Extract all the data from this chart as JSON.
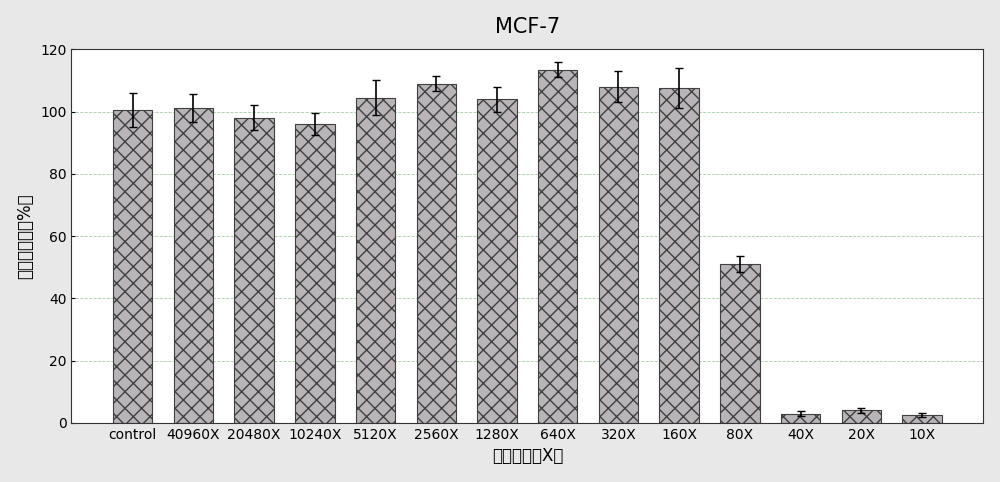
{
  "title": "MCF-7",
  "xlabel": "稀释倍数（X）",
  "ylabel": "相对存活率（%）",
  "categories": [
    "control",
    "40960X",
    "20480X",
    "10240X",
    "5120X",
    "2560X",
    "1280X",
    "640X",
    "320X",
    "160X",
    "80X",
    "40X",
    "20X",
    "10X"
  ],
  "values": [
    100.5,
    101.0,
    98.0,
    96.0,
    104.5,
    109.0,
    104.0,
    113.5,
    108.0,
    107.5,
    51.0,
    3.0,
    4.0,
    2.5
  ],
  "errors": [
    5.5,
    4.5,
    4.0,
    3.5,
    5.5,
    2.5,
    4.0,
    2.5,
    5.0,
    6.5,
    2.5,
    0.8,
    0.8,
    0.7
  ],
  "bar_face_color": "#b8b4b8",
  "bar_edge_color": "#404040",
  "hatch": "xx",
  "hatch_color": "#90a090",
  "ylim": [
    0,
    120
  ],
  "yticks": [
    0,
    20,
    40,
    60,
    80,
    100,
    120
  ],
  "grid_color": "#90c090",
  "grid_linestyle": "--",
  "title_fontsize": 15,
  "axis_label_fontsize": 12,
  "tick_fontsize": 10,
  "background_color": "#ffffff",
  "figure_bg": "#e8e8e8",
  "bar_width": 0.65
}
